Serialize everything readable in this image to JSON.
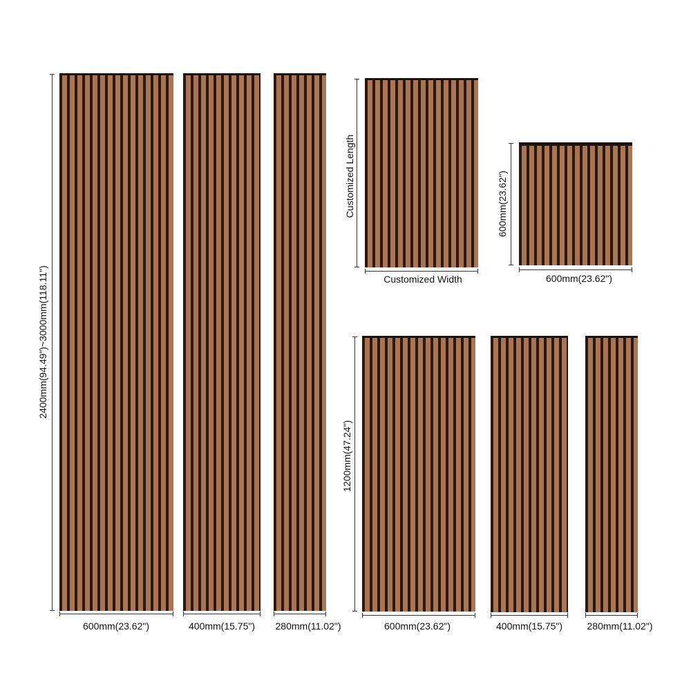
{
  "colors": {
    "slat": "#a97553",
    "gap": "#2a170e"
  },
  "labels": {
    "full_height": "2400mm(94.49\")~3000mm(118.11\")",
    "w600": "600mm(23.62\")",
    "w400": "400mm(15.75\")",
    "w280": "280mm(11.02\")",
    "custom_length": "Customized Length",
    "custom_width": "Customized Width",
    "h600": "600mm(23.62\")",
    "h1200": "1200mm(47.24\")"
  }
}
